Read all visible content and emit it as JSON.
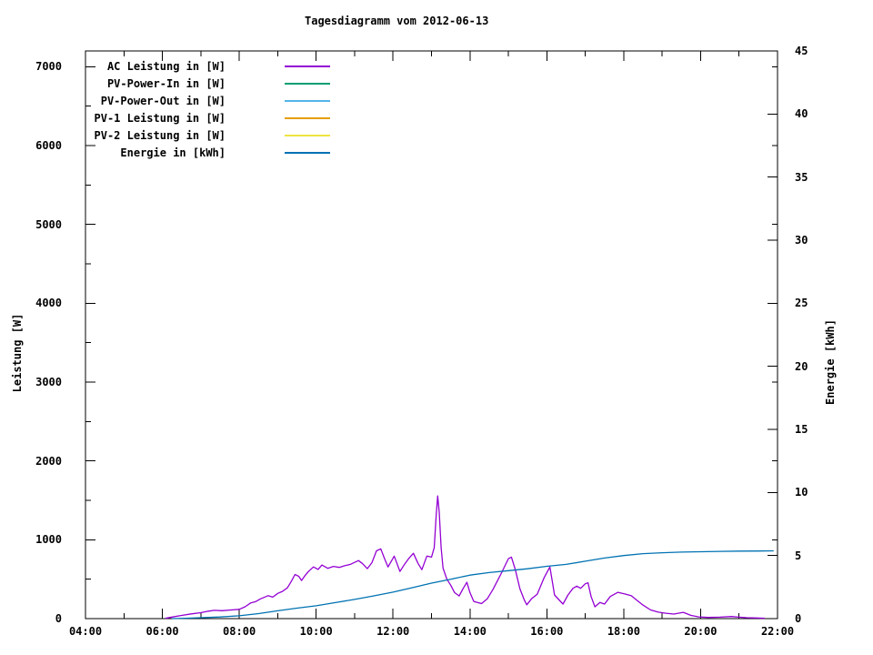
{
  "title": "Tagesdiagramm vom 2012-06-13",
  "axes": {
    "y_left_label": "Leistung [W]",
    "y_right_label": "Energie [kWh]"
  },
  "legend": [
    {
      "label": "AC Leistung in [W]",
      "color": "#9400d3"
    },
    {
      "label": "PV-Power-In in [W]",
      "color": "#009e73"
    },
    {
      "label": "PV-Power-Out in [W]",
      "color": "#56b4e9"
    },
    {
      "label": "PV-1 Leistung in [W]",
      "color": "#e69f00"
    },
    {
      "label": "PV-2 Leistung in [W]",
      "color": "#f0e442"
    },
    {
      "label": "Energie in [kWh]",
      "color": "#0072b2"
    }
  ],
  "chart_data": {
    "type": "line",
    "title": "Tagesdiagramm vom 2012-06-13",
    "grid": false,
    "legend_position": "top-left-inside",
    "x_axis": {
      "min": 4,
      "max": 22,
      "unit": "time of day",
      "major_ticks": [
        4,
        6,
        8,
        10,
        12,
        14,
        16,
        18,
        20,
        22
      ],
      "major_labels": [
        "04:00",
        "06:00",
        "08:00",
        "10:00",
        "12:00",
        "14:00",
        "16:00",
        "18:00",
        "20:00",
        "22:00"
      ],
      "minor_ticks": [
        5,
        7,
        9,
        11,
        13,
        15,
        17,
        19,
        21
      ]
    },
    "y_left": {
      "label": "Leistung [W]",
      "min": 0,
      "max": 7200,
      "major_ticks": [
        0,
        1000,
        2000,
        3000,
        4000,
        5000,
        6000,
        7000
      ],
      "major_labels": [
        "0",
        "1000",
        "2000",
        "3000",
        "4000",
        "5000",
        "6000",
        "7000"
      ],
      "minor_step": 500
    },
    "y_right": {
      "label": "Energie [kWh]",
      "min": 0,
      "max": 45,
      "major_ticks": [
        0,
        5,
        10,
        15,
        20,
        25,
        30,
        35,
        40,
        45
      ],
      "major_labels": [
        "0",
        "5",
        "10",
        "15",
        "20",
        "25",
        "30",
        "35",
        "40",
        "45"
      ]
    },
    "series": [
      {
        "name": "AC Leistung in [W]",
        "color": "#9400d3",
        "axis": "left",
        "points": [
          [
            6.08,
            3
          ],
          [
            6.25,
            20
          ],
          [
            6.5,
            40
          ],
          [
            6.75,
            60
          ],
          [
            7.0,
            75
          ],
          [
            7.2,
            95
          ],
          [
            7.35,
            105
          ],
          [
            7.55,
            100
          ],
          [
            7.75,
            108
          ],
          [
            8.0,
            118
          ],
          [
            8.15,
            150
          ],
          [
            8.3,
            200
          ],
          [
            8.42,
            215
          ],
          [
            8.55,
            250
          ],
          [
            8.75,
            291
          ],
          [
            8.87,
            272
          ],
          [
            9.0,
            320
          ],
          [
            9.12,
            345
          ],
          [
            9.25,
            390
          ],
          [
            9.35,
            470
          ],
          [
            9.45,
            560
          ],
          [
            9.55,
            535
          ],
          [
            9.62,
            483
          ],
          [
            9.7,
            540
          ],
          [
            9.8,
            598
          ],
          [
            9.93,
            655
          ],
          [
            10.05,
            624
          ],
          [
            10.15,
            680
          ],
          [
            10.3,
            638
          ],
          [
            10.45,
            662
          ],
          [
            10.6,
            650
          ],
          [
            10.75,
            672
          ],
          [
            10.9,
            690
          ],
          [
            11.1,
            736
          ],
          [
            11.2,
            700
          ],
          [
            11.33,
            633
          ],
          [
            11.45,
            710
          ],
          [
            11.57,
            860
          ],
          [
            11.68,
            885
          ],
          [
            11.78,
            760
          ],
          [
            11.87,
            655
          ],
          [
            12.03,
            793
          ],
          [
            12.18,
            598
          ],
          [
            12.3,
            690
          ],
          [
            12.42,
            770
          ],
          [
            12.53,
            828
          ],
          [
            12.65,
            700
          ],
          [
            12.75,
            621
          ],
          [
            12.88,
            793
          ],
          [
            13.0,
            780
          ],
          [
            13.07,
            900
          ],
          [
            13.12,
            1300
          ],
          [
            13.16,
            1555
          ],
          [
            13.2,
            1350
          ],
          [
            13.25,
            900
          ],
          [
            13.3,
            640
          ],
          [
            13.4,
            500
          ],
          [
            13.5,
            425
          ],
          [
            13.6,
            330
          ],
          [
            13.72,
            287
          ],
          [
            13.82,
            380
          ],
          [
            13.92,
            460
          ],
          [
            14.0,
            330
          ],
          [
            14.1,
            218
          ],
          [
            14.3,
            190
          ],
          [
            14.45,
            250
          ],
          [
            14.6,
            370
          ],
          [
            14.8,
            560
          ],
          [
            15.0,
            760
          ],
          [
            15.08,
            780
          ],
          [
            15.18,
            620
          ],
          [
            15.3,
            380
          ],
          [
            15.42,
            230
          ],
          [
            15.48,
            175
          ],
          [
            15.6,
            250
          ],
          [
            15.75,
            310
          ],
          [
            15.93,
            520
          ],
          [
            16.08,
            655
          ],
          [
            16.2,
            300
          ],
          [
            16.33,
            231
          ],
          [
            16.42,
            185
          ],
          [
            16.55,
            300
          ],
          [
            16.68,
            384
          ],
          [
            16.78,
            412
          ],
          [
            16.88,
            384
          ],
          [
            17.0,
            442
          ],
          [
            17.07,
            455
          ],
          [
            17.15,
            280
          ],
          [
            17.25,
            150
          ],
          [
            17.38,
            205
          ],
          [
            17.5,
            185
          ],
          [
            17.65,
            280
          ],
          [
            17.85,
            333
          ],
          [
            18.05,
            310
          ],
          [
            18.2,
            290
          ],
          [
            18.35,
            230
          ],
          [
            18.5,
            172
          ],
          [
            18.7,
            110
          ],
          [
            18.9,
            82
          ],
          [
            19.1,
            68
          ],
          [
            19.3,
            58
          ],
          [
            19.55,
            80
          ],
          [
            19.75,
            40
          ],
          [
            19.95,
            22
          ],
          [
            20.2,
            15
          ],
          [
            20.5,
            18
          ],
          [
            20.8,
            26
          ],
          [
            21.0,
            18
          ],
          [
            21.2,
            12
          ],
          [
            21.45,
            8
          ],
          [
            21.67,
            5
          ]
        ]
      },
      {
        "name": "PV-Power-In in [W]",
        "color": "#009e73",
        "axis": "left",
        "points": []
      },
      {
        "name": "PV-Power-Out in [W]",
        "color": "#56b4e9",
        "axis": "left",
        "points": []
      },
      {
        "name": "PV-1 Leistung in [W]",
        "color": "#e69f00",
        "axis": "left",
        "points": []
      },
      {
        "name": "PV-2 Leistung in [W]",
        "color": "#f0e442",
        "axis": "left",
        "points": []
      },
      {
        "name": "Energie in [kWh]",
        "color": "#0072b2",
        "axis": "right",
        "points": [
          [
            6.25,
            0.0
          ],
          [
            6.6,
            0.03
          ],
          [
            7.0,
            0.07
          ],
          [
            7.5,
            0.13
          ],
          [
            8.0,
            0.22
          ],
          [
            8.5,
            0.4
          ],
          [
            9.0,
            0.62
          ],
          [
            9.5,
            0.83
          ],
          [
            10.0,
            1.02
          ],
          [
            10.5,
            1.27
          ],
          [
            11.0,
            1.52
          ],
          [
            11.5,
            1.8
          ],
          [
            12.0,
            2.1
          ],
          [
            12.5,
            2.45
          ],
          [
            13.0,
            2.81
          ],
          [
            13.5,
            3.12
          ],
          [
            14.0,
            3.45
          ],
          [
            14.5,
            3.65
          ],
          [
            15.0,
            3.8
          ],
          [
            15.5,
            3.95
          ],
          [
            16.0,
            4.15
          ],
          [
            16.5,
            4.3
          ],
          [
            17.0,
            4.55
          ],
          [
            17.5,
            4.8
          ],
          [
            18.0,
            5.0
          ],
          [
            18.5,
            5.15
          ],
          [
            19.0,
            5.22
          ],
          [
            19.5,
            5.27
          ],
          [
            20.0,
            5.3
          ],
          [
            20.5,
            5.33
          ],
          [
            21.0,
            5.35
          ],
          [
            21.5,
            5.36
          ],
          [
            21.9,
            5.37
          ]
        ]
      }
    ]
  }
}
